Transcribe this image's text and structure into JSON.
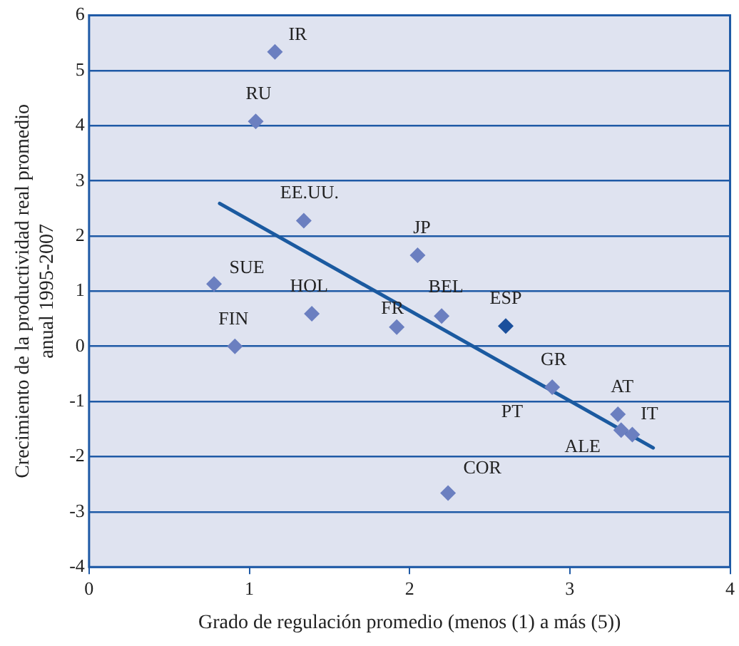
{
  "chart_data": {
    "type": "scatter",
    "xlabel": "Grado de regulación promedio (menos (1) a más (5))",
    "ylabel": "Crecimiento de la productividad real promedio anual 1995-2007",
    "xlim": [
      0,
      4
    ],
    "xticks": [
      0,
      1,
      2,
      3,
      4
    ],
    "ylim": [
      -4,
      6
    ],
    "yticks": [
      -4,
      -3,
      -2,
      -1,
      0,
      1,
      2,
      3,
      4,
      5,
      6
    ],
    "grid": "y",
    "marker": "diamond",
    "legend": false,
    "annotations": [
      "PT"
    ],
    "series": [
      {
        "name": "IR",
        "color": "#6b7fc0",
        "x": [
          1.16
        ],
        "values": [
          5.34
        ]
      },
      {
        "name": "RU",
        "color": "#6b7fc0",
        "x": [
          1.04
        ],
        "values": [
          4.08
        ]
      },
      {
        "name": "EE.UU.",
        "color": "#6b7fc0",
        "x": [
          1.34
        ],
        "values": [
          2.28
        ]
      },
      {
        "name": "JP",
        "color": "#6b7fc0",
        "x": [
          2.05
        ],
        "values": [
          1.65
        ]
      },
      {
        "name": "SUE",
        "color": "#6b7fc0",
        "x": [
          0.78
        ],
        "values": [
          1.13
        ]
      },
      {
        "name": "HOL",
        "color": "#6b7fc0",
        "x": [
          1.39
        ],
        "values": [
          0.59
        ]
      },
      {
        "name": "FR",
        "color": "#6b7fc0",
        "x": [
          1.92
        ],
        "values": [
          0.35
        ]
      },
      {
        "name": "BEL",
        "color": "#6b7fc0",
        "x": [
          2.2
        ],
        "values": [
          0.55
        ]
      },
      {
        "name": "ESP",
        "color": "#1a4f9c",
        "x": [
          2.6
        ],
        "values": [
          0.37
        ]
      },
      {
        "name": "FIN",
        "color": "#6b7fc0",
        "x": [
          0.91
        ],
        "values": [
          0.0
        ]
      },
      {
        "name": "GR",
        "color": "#6b7fc0",
        "x": [
          2.89
        ],
        "values": [
          -0.74
        ]
      },
      {
        "name": "AT",
        "color": "#6b7fc0",
        "x": [
          3.3
        ],
        "values": [
          -1.23
        ]
      },
      {
        "name": "ALE",
        "color": "#6b7fc0",
        "x": [
          3.32
        ],
        "values": [
          -1.52
        ]
      },
      {
        "name": "IT",
        "color": "#6b7fc0",
        "x": [
          3.39
        ],
        "values": [
          -1.6
        ]
      },
      {
        "name": "COR",
        "color": "#6b7fc0",
        "x": [
          2.24
        ],
        "values": [
          -2.66
        ]
      },
      {
        "type": "line",
        "marker": "none",
        "color": "#1b5aa0",
        "x": [
          0.815,
          3.52
        ],
        "values": [
          2.59,
          -1.84
        ]
      }
    ]
  }
}
